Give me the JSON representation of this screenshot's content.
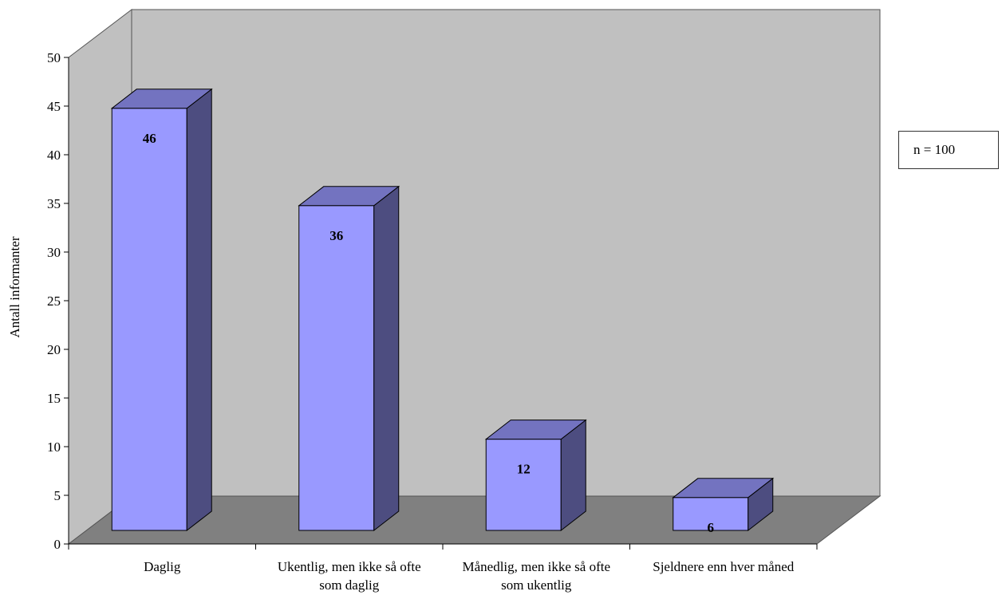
{
  "chart_data": {
    "type": "bar",
    "categories": [
      [
        "Daglig"
      ],
      [
        "Ukentlig, men ikke så ofte",
        "som daglig"
      ],
      [
        "Månedlig, men ikke så ofte",
        "som ukentlig"
      ],
      [
        "Sjeldnere enn hver måned"
      ]
    ],
    "values": [
      46,
      36,
      12,
      6
    ],
    "ylabel": "Antall informanter",
    "ylim": [
      0,
      50
    ],
    "yticks": [
      0,
      5,
      10,
      15,
      20,
      25,
      30,
      35,
      40,
      45,
      50
    ],
    "data_labels": true,
    "style": "3d",
    "annotation": "n = 100",
    "colors": {
      "bar_front": "#9999ff",
      "bar_side": "#4d4d80",
      "bar_top": "#7373c0",
      "back_wall": "#c0c0c0",
      "floor": "#808080"
    }
  }
}
